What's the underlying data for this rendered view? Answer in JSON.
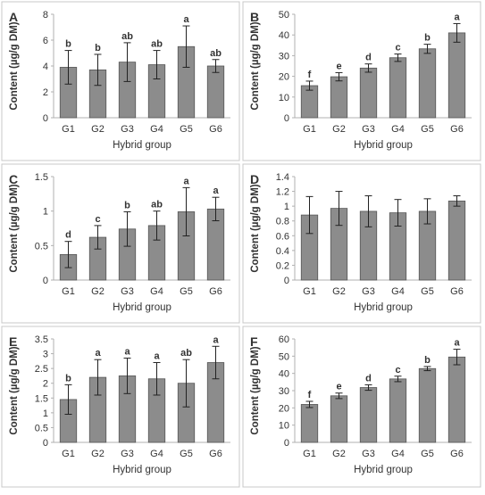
{
  "chart_data": [
    {
      "panel_label": "A",
      "type": "bar",
      "categories": [
        "G1",
        "G2",
        "G3",
        "G4",
        "G5",
        "G6"
      ],
      "values": [
        3.9,
        3.7,
        4.3,
        4.1,
        5.5,
        4.0
      ],
      "errors": [
        1.3,
        1.2,
        1.5,
        1.1,
        1.6,
        0.5
      ],
      "significance": [
        "b",
        "b",
        "ab",
        "ab",
        "a",
        "ab"
      ],
      "ylim": [
        0,
        8
      ],
      "yticks": [
        0,
        2,
        4,
        6,
        8
      ],
      "ylabel": "Content (µg/g DM)",
      "xlabel": "Hybrid group"
    },
    {
      "panel_label": "B",
      "type": "bar",
      "categories": [
        "G1",
        "G2",
        "G3",
        "G4",
        "G5",
        "G6"
      ],
      "values": [
        15.5,
        19.8,
        24.0,
        29.0,
        33.3,
        41.0
      ],
      "errors": [
        2.2,
        2.0,
        2.0,
        1.8,
        2.2,
        4.5
      ],
      "significance": [
        "f",
        "e",
        "d",
        "c",
        "b",
        "a"
      ],
      "ylim": [
        0,
        50
      ],
      "yticks": [
        0,
        10,
        20,
        30,
        40,
        50
      ],
      "ylabel": "Content (µg/g DM)",
      "xlabel": "Hybrid group"
    },
    {
      "panel_label": "C",
      "type": "bar",
      "categories": [
        "G1",
        "G2",
        "G3",
        "G4",
        "G5",
        "G6"
      ],
      "values": [
        0.37,
        0.62,
        0.74,
        0.79,
        0.99,
        1.03
      ],
      "errors": [
        0.19,
        0.17,
        0.25,
        0.21,
        0.35,
        0.17
      ],
      "significance": [
        "d",
        "c",
        "b",
        "ab",
        "a",
        "a"
      ],
      "ylim": [
        0,
        1.5
      ],
      "yticks": [
        "0",
        "0.5",
        "1",
        "1.5"
      ],
      "ylabel": "Content (µg/g DM)",
      "xlabel": "Hybrid group"
    },
    {
      "panel_label": "D",
      "type": "bar",
      "categories": [
        "G1",
        "G2",
        "G3",
        "G4",
        "G5",
        "G6"
      ],
      "values": [
        0.88,
        0.97,
        0.93,
        0.91,
        0.93,
        1.07
      ],
      "errors": [
        0.25,
        0.23,
        0.21,
        0.18,
        0.17,
        0.07
      ],
      "significance": [
        "",
        "",
        "",
        "",
        "",
        ""
      ],
      "ylim": [
        0,
        1.4
      ],
      "yticks": [
        "0",
        "0.2",
        "0.4",
        "0.6",
        "0.8",
        "1",
        "1.2",
        "1.4"
      ],
      "ylabel": "Content (µg/g DM)",
      "xlabel": "Hybrid group"
    },
    {
      "panel_label": "E",
      "type": "bar",
      "categories": [
        "G1",
        "G2",
        "G3",
        "G4",
        "G5",
        "G6"
      ],
      "values": [
        1.45,
        2.2,
        2.25,
        2.15,
        2.0,
        2.7
      ],
      "errors": [
        0.5,
        0.6,
        0.6,
        0.55,
        0.8,
        0.55
      ],
      "significance": [
        "b",
        "a",
        "a",
        "a",
        "ab",
        "a"
      ],
      "ylim": [
        0,
        3.5
      ],
      "yticks": [
        "0",
        "0.5",
        "1",
        "1.5",
        "2",
        "2.5",
        "3",
        "3.5"
      ],
      "ylabel": "Content (µg/g DM)",
      "xlabel": "Hybrid group"
    },
    {
      "panel_label": "F",
      "type": "bar",
      "categories": [
        "G1",
        "G2",
        "G3",
        "G4",
        "G5",
        "G6"
      ],
      "values": [
        22.0,
        27.0,
        31.8,
        36.8,
        42.8,
        49.5
      ],
      "errors": [
        1.8,
        1.6,
        1.6,
        1.6,
        1.2,
        4.5
      ],
      "significance": [
        "f",
        "e",
        "d",
        "c",
        "b",
        "a"
      ],
      "ylim": [
        0,
        60
      ],
      "yticks": [
        0,
        10,
        20,
        30,
        40,
        50,
        60
      ],
      "ylabel": "Content (µg/g DM)",
      "xlabel": "Hybrid group"
    }
  ]
}
